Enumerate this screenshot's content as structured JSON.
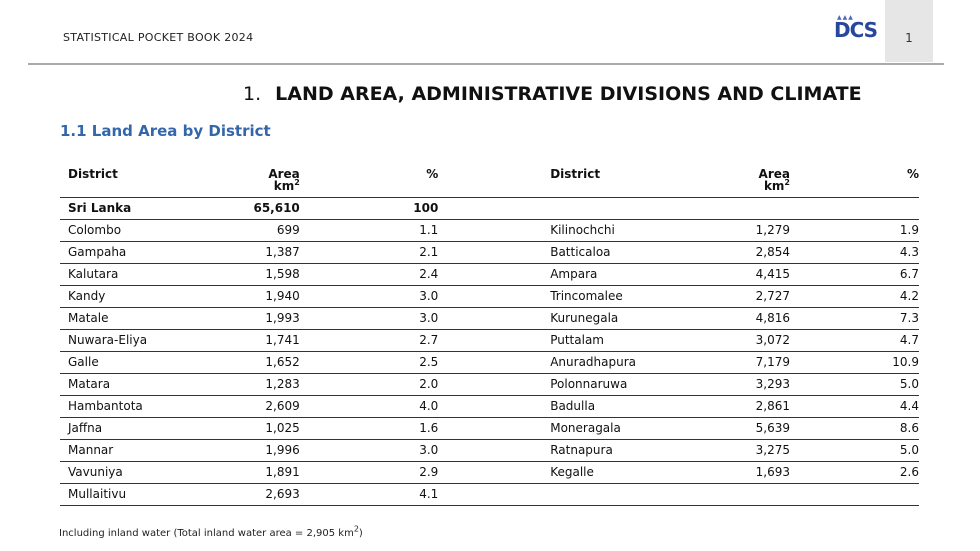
{
  "header": {
    "title": "STATISTICAL POCKET BOOK 2024",
    "logo_text": "DCS",
    "page_number": "1"
  },
  "chapter": {
    "number": "1.",
    "title": "LAND AREA, ADMINISTRATIVE DIVISIONS AND CLIMATE"
  },
  "section": {
    "title": "1.1 Land Area by District"
  },
  "table": {
    "headers": {
      "district": "District",
      "area": "Area",
      "area_unit": "km",
      "area_unit_sup": "2",
      "percent": "%"
    },
    "rows": [
      {
        "d1": "Sri Lanka",
        "a1": "65,610",
        "p1": "100",
        "d2": "",
        "a2": "",
        "p2": ""
      },
      {
        "d1": "Colombo",
        "a1": "699",
        "p1": "1.1",
        "d2": "Kilinochchi",
        "a2": "1,279",
        "p2": "1.9"
      },
      {
        "d1": "Gampaha",
        "a1": "1,387",
        "p1": "2.1",
        "d2": "Batticaloa",
        "a2": "2,854",
        "p2": "4.3"
      },
      {
        "d1": "Kalutara",
        "a1": "1,598",
        "p1": "2.4",
        "d2": "Ampara",
        "a2": "4,415",
        "p2": "6.7"
      },
      {
        "d1": "Kandy",
        "a1": "1,940",
        "p1": "3.0",
        "d2": "Trincomalee",
        "a2": "2,727",
        "p2": "4.2"
      },
      {
        "d1": "Matale",
        "a1": "1,993",
        "p1": "3.0",
        "d2": "Kurunegala",
        "a2": "4,816",
        "p2": "7.3"
      },
      {
        "d1": "Nuwara-Eliya",
        "a1": "1,741",
        "p1": "2.7",
        "d2": "Puttalam",
        "a2": "3,072",
        "p2": "4.7"
      },
      {
        "d1": "Galle",
        "a1": "1,652",
        "p1": "2.5",
        "d2": "Anuradhapura",
        "a2": "7,179",
        "p2": "10.9"
      },
      {
        "d1": "Matara",
        "a1": "1,283",
        "p1": "2.0",
        "d2": "Polonnaruwa",
        "a2": "3,293",
        "p2": "5.0"
      },
      {
        "d1": "Hambantota",
        "a1": "2,609",
        "p1": "4.0",
        "d2": "Badulla",
        "a2": "2,861",
        "p2": "4.4"
      },
      {
        "d1": "Jaffna",
        "a1": "1,025",
        "p1": "1.6",
        "d2": "Moneragala",
        "a2": "5,639",
        "p2": "8.6"
      },
      {
        "d1": "Mannar",
        "a1": "1,996",
        "p1": "3.0",
        "d2": "Ratnapura",
        "a2": "3,275",
        "p2": "5.0"
      },
      {
        "d1": "Vavuniya",
        "a1": "1,891",
        "p1": "2.9",
        "d2": "Kegalle",
        "a2": "1,693",
        "p2": "2.6"
      },
      {
        "d1": "Mullaitivu",
        "a1": "2,693",
        "p1": "4.1",
        "d2": "",
        "a2": "",
        "p2": ""
      }
    ]
  },
  "footnote": {
    "text": "Including inland water (Total inland water area = 2,905 km",
    "sup": "2",
    "close": ")"
  },
  "colors": {
    "section_title": "#3366aa",
    "logo": "#26479c",
    "page_box": "#e6e6e6"
  }
}
